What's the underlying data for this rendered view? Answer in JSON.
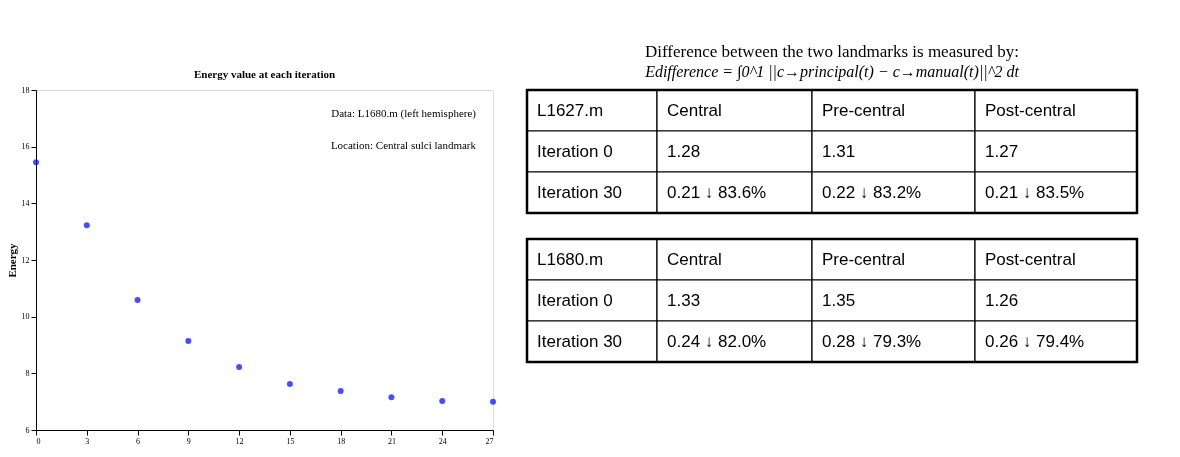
{
  "chart_data": [
    {
      "type": "scatter",
      "title": "Energy value at each iteration",
      "ylabel": "Energy",
      "x": [
        0,
        3,
        6,
        9,
        12,
        15,
        18,
        21,
        24,
        27
      ],
      "series": [
        {
          "color": "#0000ff",
          "values": [
            15.45,
            13.23,
            10.59,
            9.14,
            8.22,
            7.62,
            7.38,
            7.16,
            7.02,
            7.0
          ]
        }
      ],
      "xlim": [
        0,
        27
      ],
      "xticks": [
        0,
        3,
        6,
        9,
        12,
        15,
        18,
        21,
        24,
        27
      ],
      "ylim": [
        6,
        18
      ],
      "yticks": [
        6,
        8,
        10,
        12,
        14,
        16,
        18
      ],
      "marker": "circle",
      "grid": false,
      "annotations": [
        "Data:  L1680.m  (left hemisphere)",
        "Location: Central sulci landmark"
      ]
    },
    {
      "type": "other",
      "title": "Difference between the two landmarks is measured by:",
      "subtitle": "Edifference = ∫0^1 ||c→principal(t) − c→manual(t)||^2 dt",
      "categories": [
        "L1627.m",
        "Central",
        "Pre-central",
        "Post-central"
      ],
      "y_categories": [
        "Iteration 0",
        "Iteration 30"
      ],
      "cell_labels": [
        [
          "1.28",
          "1.31",
          "1.27"
        ],
        [
          "0.21 ↓ 83.6%",
          "0.22  ↓ 83.2%",
          "0.21 ↓ 83.5%"
        ]
      ]
    },
    {
      "type": "other",
      "categories": [
        "L1680.m",
        "Central",
        "Pre-central",
        "Post-central"
      ],
      "y_categories": [
        "Iteration 0",
        "Iteration 30"
      ],
      "cell_labels": [
        [
          "1.33",
          "1.35",
          "1.26"
        ],
        [
          "0.24 ↓ 82.0%",
          "0.28  ↓ 79.3%",
          "0.26  ↓ 79.4%"
        ]
      ]
    }
  ]
}
